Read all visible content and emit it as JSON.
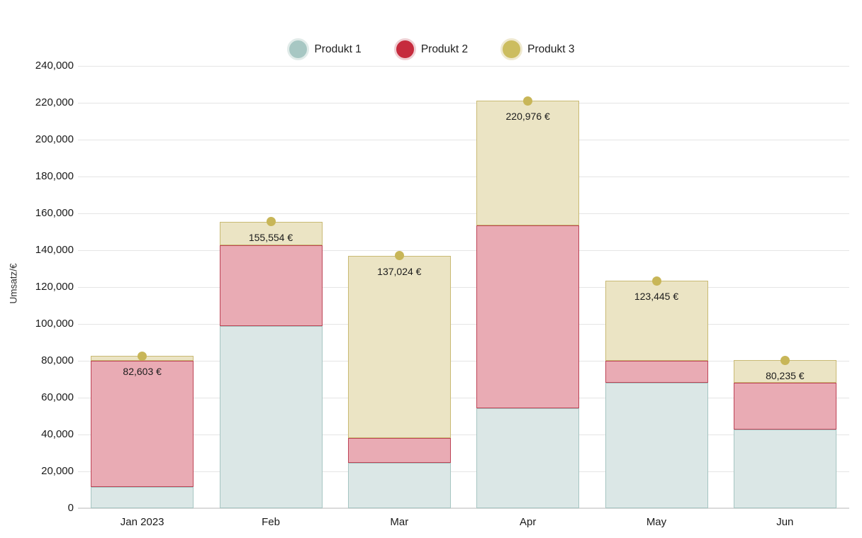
{
  "y_axis": {
    "title": "Umsatz/€",
    "tick_labels": [
      "0",
      "20,000",
      "40,000",
      "60,000",
      "80,000",
      "100,000",
      "120,000",
      "140,000",
      "160,000",
      "180,000",
      "200,000",
      "220,000",
      "240,000"
    ]
  },
  "colors": {
    "background": "#ffffff",
    "gridline": "#e5e5e5",
    "axis_line": "#dbdbdb",
    "marker": "#c8b658",
    "series": [
      {
        "name": "Produkt 1",
        "legend": "#a7c7c3",
        "halo": "#e1ebe9",
        "fill": "#dbe7e6",
        "border": "#a6c5c2"
      },
      {
        "name": "Produkt 2",
        "legend": "#c62b3d",
        "halo": "#efd0d4",
        "fill": "#e9abb4",
        "border": "#bd4456"
      },
      {
        "name": "Produkt 3",
        "legend": "#ccbd5f",
        "halo": "#efe9cf",
        "fill": "#ebe4c4",
        "border": "#c9ba74"
      }
    ]
  },
  "chart_data": {
    "type": "bar",
    "stacked": true,
    "title": "",
    "xlabel": "",
    "ylabel": "Umsatz/€",
    "ylim": [
      0,
      240000
    ],
    "ytick_step": 20000,
    "grid": true,
    "legend_position": "top",
    "categories": [
      "Jan 2023",
      "Feb",
      "Mar",
      "Apr",
      "May",
      "Jun"
    ],
    "series": [
      {
        "name": "Produkt 1",
        "values": [
          11600,
          98800,
          24500,
          54300,
          68100,
          42700
        ]
      },
      {
        "name": "Produkt 2",
        "values": [
          68300,
          43800,
          13600,
          99100,
          12000,
          25500
        ]
      },
      {
        "name": "Produkt 3",
        "values": [
          2703,
          12954,
          98924,
          67576,
          43345,
          12035
        ]
      }
    ],
    "totals": [
      82603,
      155554,
      137024,
      220976,
      123445,
      80235
    ],
    "total_labels": [
      "82,603 €",
      "155,554 €",
      "137,024 €",
      "220,976 €",
      "123,445 €",
      "80,235 €"
    ]
  }
}
